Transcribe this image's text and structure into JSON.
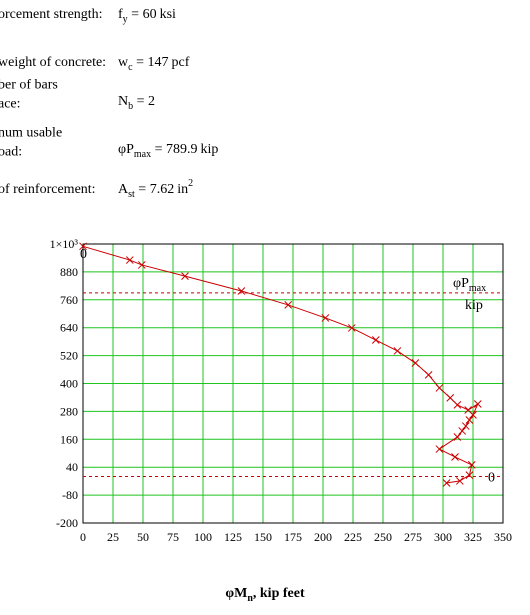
{
  "document": {
    "equals": "=",
    "rows": [
      {
        "label": [
          "orcement strength:"
        ],
        "symbol": "f",
        "subscript": "y",
        "value": 60,
        "unit": "ksi"
      },
      {
        "label": [
          "weight of concrete:"
        ],
        "symbol": "w",
        "subscript": "c",
        "value": 147,
        "unit": "pcf"
      },
      {
        "label": [
          "ber of bars",
          "ace:"
        ],
        "symbol": "N",
        "subscript": "b",
        "value": 2
      },
      {
        "label": [
          "num usable",
          "oad:"
        ],
        "symbol": "φP",
        "subscript": "max",
        "value": 789.9,
        "unit": "kip"
      },
      {
        "label": [
          "of reinforcement:"
        ],
        "symbol": "A",
        "subscript": "st",
        "value": 7.62,
        "unit": "in",
        "unit_exponent": 2
      }
    ]
  },
  "chart_data": {
    "type": "line",
    "x_label": {
      "symbol": "φM",
      "subscript": "n",
      "text": ", kip feet"
    },
    "xlim": [
      0,
      350
    ],
    "xticks": [
      0,
      25,
      50,
      75,
      100,
      125,
      150,
      175,
      200,
      225,
      250,
      275,
      300,
      325,
      350
    ],
    "ylim": [
      -200,
      1000
    ],
    "yticks": [
      -200,
      -80,
      40,
      160,
      280,
      400,
      520,
      640,
      760,
      880,
      {
        "value": 1000,
        "label": "1×10³"
      }
    ],
    "grid": true,
    "grid_color": "#1fc41f",
    "series": [
      {
        "color": "#cc0000",
        "x": [
          0,
          39,
          49,
          85,
          132,
          171,
          202,
          224,
          244,
          262,
          277,
          288,
          297,
          306,
          312,
          321,
          329,
          325,
          322,
          319,
          316,
          312,
          297,
          310,
          324,
          322,
          314,
          303
        ],
        "values": [
          990,
          931,
          910,
          862,
          798,
          738,
          682,
          639,
          587,
          540,
          488,
          437,
          381,
          338,
          308,
          286,
          312,
          265,
          243,
          217,
          196,
          170,
          118,
          84,
          50,
          6,
          -19,
          -28
        ]
      }
    ],
    "reference_lines": [
      {
        "value": 789.9,
        "name": "φP",
        "subscript": "max",
        "unit": "kip"
      },
      {
        "value": 0
      }
    ],
    "x_marker": {
      "value": 0
    }
  }
}
